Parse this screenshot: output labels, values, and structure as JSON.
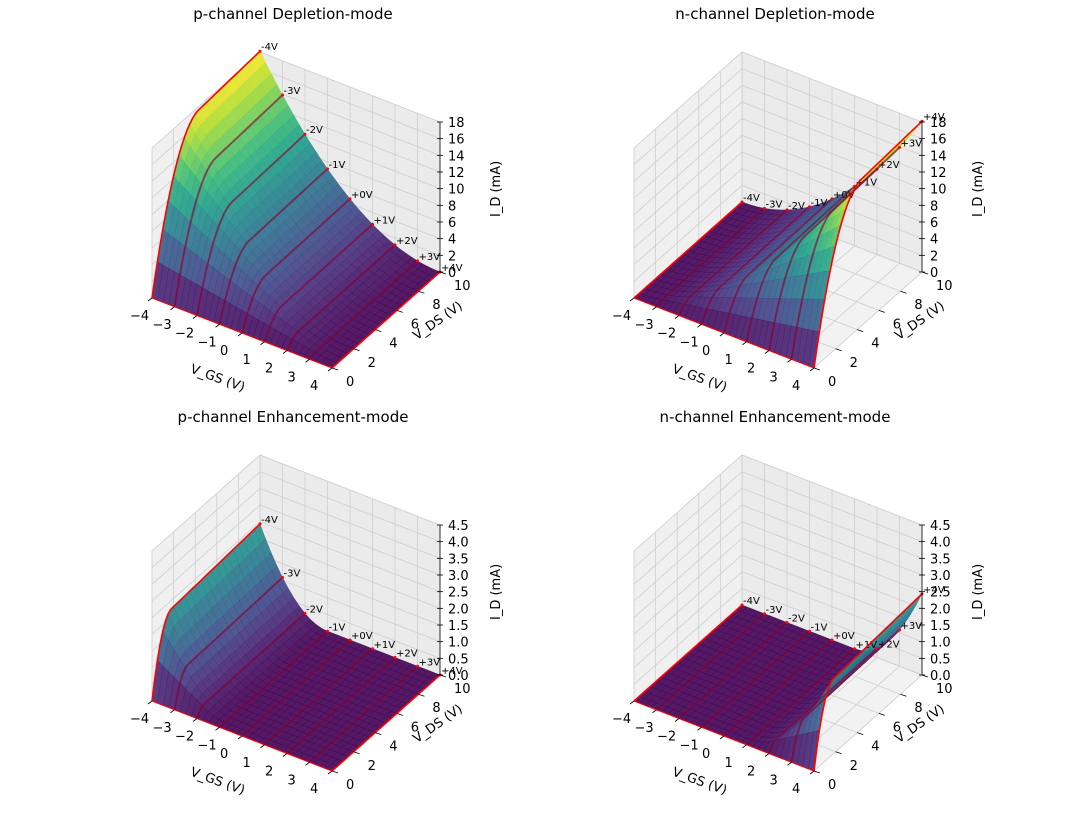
{
  "chart_data": [
    {
      "type": "surface3d",
      "title": "p-channel Depletion-mode",
      "xlabel": "V_GS (V)",
      "ylabel": "V_DS (V)",
      "zlabel": "I_D (mA)",
      "xlim": [
        -4,
        4
      ],
      "ylim": [
        0,
        10
      ],
      "zlim": [
        0,
        18
      ],
      "xticks": [
        "−4",
        "−3",
        "−2",
        "−1",
        "0",
        "1",
        "2",
        "3",
        "4"
      ],
      "yticks": [
        "0",
        "2",
        "4",
        "6",
        "8",
        "10"
      ],
      "zticks": [
        "0",
        "2",
        "4",
        "6",
        "8",
        "10",
        "12",
        "14",
        "16",
        "18"
      ],
      "channel": "p",
      "mode": "depletion",
      "vth": 4,
      "idss": 17.6,
      "curve_labels": [
        "-4V",
        "-3V",
        "-2V",
        "-1V",
        "+0V",
        "+1V",
        "+2V",
        "+3V",
        "+4V"
      ],
      "curve_vgs": [
        -4,
        -3,
        -2,
        -1,
        0,
        1,
        2,
        3,
        4
      ],
      "curve_max_id": [
        17.6,
        13.5,
        9.9,
        6.9,
        4.4,
        2.5,
        1.1,
        0.3,
        0.0
      ]
    },
    {
      "type": "surface3d",
      "title": "n-channel Depletion-mode",
      "xlabel": "V_GS (V)",
      "ylabel": "V_DS (V)",
      "zlabel": "I_D (mA)",
      "xlim": [
        -4,
        4
      ],
      "ylim": [
        0,
        10
      ],
      "zlim": [
        0,
        18
      ],
      "xticks": [
        "−4",
        "−3",
        "−2",
        "−1",
        "0",
        "1",
        "2",
        "3",
        "4"
      ],
      "yticks": [
        "0",
        "2",
        "4",
        "6",
        "8",
        "10"
      ],
      "zticks": [
        "0",
        "2",
        "4",
        "6",
        "8",
        "10",
        "12",
        "14",
        "16",
        "18"
      ],
      "channel": "n",
      "mode": "depletion",
      "vth": -4,
      "idss": 17.6,
      "curve_labels": [
        "-4V",
        "-3V",
        "-2V",
        "-1V",
        "+0V",
        "+1V",
        "+2V",
        "+3V",
        "+4V"
      ],
      "curve_vgs": [
        -4,
        -3,
        -2,
        -1,
        0,
        1,
        2,
        3,
        4
      ],
      "curve_max_id": [
        0.0,
        0.3,
        1.1,
        2.5,
        4.4,
        6.9,
        9.9,
        13.5,
        17.6
      ]
    },
    {
      "type": "surface3d",
      "title": "p-channel Enhancement-mode",
      "xlabel": "V_GS (V)",
      "ylabel": "V_DS (V)",
      "zlabel": "I_D (mA)",
      "xlim": [
        -4,
        4
      ],
      "ylim": [
        0,
        10
      ],
      "zlim": [
        0,
        4.5
      ],
      "xticks": [
        "−4",
        "−3",
        "−2",
        "−1",
        "0",
        "1",
        "2",
        "3",
        "4"
      ],
      "yticks": [
        "0",
        "2",
        "4",
        "6",
        "8",
        "10"
      ],
      "zticks": [
        "0.0",
        "0.5",
        "1.0",
        "1.5",
        "2.0",
        "2.5",
        "3.0",
        "3.5",
        "4.0",
        "4.5"
      ],
      "channel": "p",
      "mode": "enhancement",
      "vth": -1,
      "k": 0.5,
      "curve_labels": [
        "-4V",
        "-3V",
        "-2V",
        "-1V",
        "+0V",
        "+1V",
        "+2V",
        "+3V",
        "+4V"
      ],
      "curve_vgs": [
        -4,
        -3,
        -2,
        -1,
        0,
        1,
        2,
        3,
        4
      ],
      "curve_max_id": [
        4.5,
        2.0,
        0.5,
        0.0,
        0.0,
        0.0,
        0.0,
        0.0,
        0.0
      ]
    },
    {
      "type": "surface3d",
      "title": "n-channel Enhancement-mode",
      "xlabel": "V_GS (V)",
      "ylabel": "V_DS (V)",
      "zlabel": "I_D (mA)",
      "xlim": [
        -4,
        4
      ],
      "ylim": [
        0,
        10
      ],
      "zlim": [
        0,
        4.5
      ],
      "xticks": [
        "−4",
        "−3",
        "−2",
        "−1",
        "0",
        "1",
        "2",
        "3",
        "4"
      ],
      "yticks": [
        "0",
        "2",
        "4",
        "6",
        "8",
        "10"
      ],
      "zticks": [
        "0.0",
        "0.5",
        "1.0",
        "1.5",
        "2.0",
        "2.5",
        "3.0",
        "3.5",
        "4.0",
        "4.5"
      ],
      "channel": "n",
      "mode": "enhancement",
      "vth": 1,
      "k": 0.5,
      "curve_labels": [
        "-4V",
        "-3V",
        "-2V",
        "-1V",
        "+0V",
        "+1V",
        "+2V",
        "+3V",
        "+4V"
      ],
      "curve_vgs": [
        -4,
        -3,
        -2,
        -1,
        0,
        1,
        2,
        3,
        4
      ],
      "curve_max_id": [
        0.0,
        0.0,
        0.0,
        0.0,
        0.0,
        0.0,
        0.5,
        2.0,
        4.5
      ]
    }
  ]
}
